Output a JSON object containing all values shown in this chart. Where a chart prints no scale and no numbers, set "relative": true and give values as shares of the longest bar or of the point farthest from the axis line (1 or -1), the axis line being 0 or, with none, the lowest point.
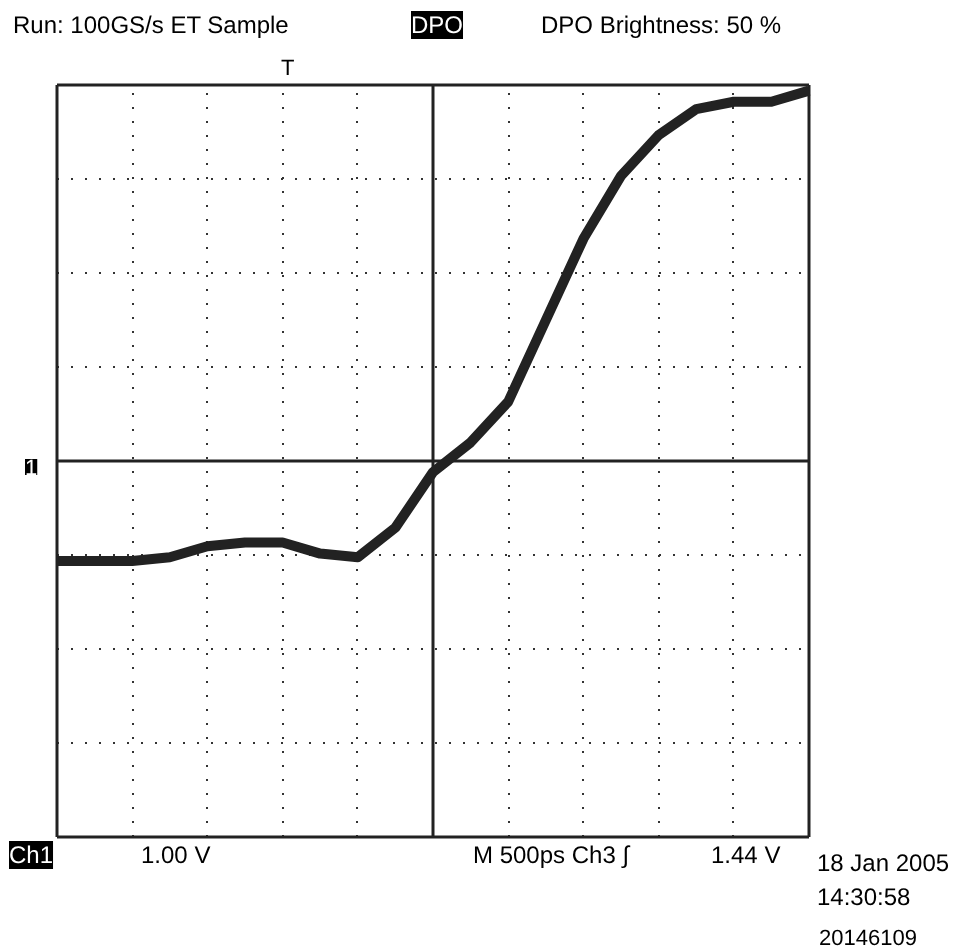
{
  "chart_data": {
    "type": "line",
    "relative": true,
    "title": "Run: 100GS/s ET Sample",
    "subtitle": "DPO Brightness: 50 %",
    "categories": [
      null,
      null,
      null,
      null,
      null,
      null,
      null,
      null,
      null,
      null,
      null,
      null,
      null,
      null,
      null,
      null,
      null,
      null,
      null,
      null,
      null
    ],
    "series": [
      {
        "color": "#222222",
        "values": [
          -0.27,
          -0.27,
          -0.27,
          -0.26,
          -0.23,
          -0.22,
          -0.22,
          -0.25,
          -0.26,
          -0.18,
          -0.03,
          0.05,
          0.16,
          0.38,
          0.6,
          0.77,
          0.88,
          0.95,
          0.97,
          0.97,
          1
        ]
      }
    ],
    "grid": true,
    "marker": "none",
    "line_style": "solid",
    "annotations": [
      "DPO",
      "T",
      "1",
      "Ch1",
      "1.00 V",
      "M  500ps  Ch3 ∫",
      "1.44 V",
      "18 Jan 2005",
      "14:30:58",
      "20146109"
    ]
  }
}
